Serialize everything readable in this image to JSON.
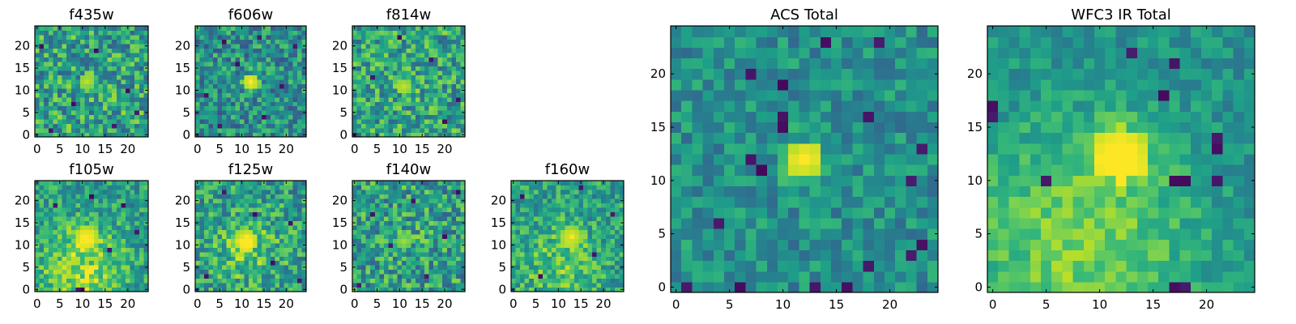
{
  "chart_data": [
    {
      "type": "heatmap",
      "title": "f435w",
      "xticks": [
        "0",
        "5",
        "10",
        "15",
        "20"
      ],
      "yticks": [
        "0",
        "5",
        "10",
        "15",
        "20"
      ],
      "xlim": [
        -0.5,
        24.5
      ],
      "ylim": [
        -0.5,
        24.5
      ],
      "peak_center": [
        11,
        12
      ],
      "peak_radius": 1.6,
      "peak_value": 0.9,
      "base": 0.58,
      "noise": 0.27,
      "seed": 11,
      "bright_blob": null,
      "dark_pixels": [
        [
          3,
          1
        ],
        [
          17,
          2
        ],
        [
          8,
          7
        ],
        [
          20,
          10
        ],
        [
          13,
          19
        ],
        [
          1,
          20
        ],
        [
          22,
          5
        ]
      ],
      "colormap": "viridis",
      "grid": false
    },
    {
      "type": "heatmap",
      "title": "f606w",
      "xticks": [
        "0",
        "5",
        "10",
        "15",
        "20"
      ],
      "yticks": [
        "0",
        "5",
        "10",
        "15",
        "20"
      ],
      "xlim": [
        -0.5,
        24.5
      ],
      "ylim": [
        -0.5,
        24.5
      ],
      "peak_center": [
        12,
        12
      ],
      "peak_radius": 1.8,
      "peak_value": 1.0,
      "base": 0.5,
      "noise": 0.24,
      "seed": 23,
      "bright_blob": null,
      "dark_pixels": [
        [
          5,
          2
        ],
        [
          15,
          4
        ],
        [
          2,
          9
        ],
        [
          19,
          11
        ],
        [
          9,
          16
        ],
        [
          22,
          20
        ],
        [
          14,
          22
        ],
        [
          6,
          21
        ]
      ],
      "colormap": "viridis",
      "grid": false
    },
    {
      "type": "heatmap",
      "title": "f814w",
      "xticks": [
        "0",
        "5",
        "10",
        "15",
        "20"
      ],
      "yticks": [
        "0",
        "5",
        "10",
        "15",
        "20"
      ],
      "xlim": [
        -0.5,
        24.5
      ],
      "ylim": [
        -0.5,
        24.5
      ],
      "peak_center": [
        11,
        11
      ],
      "peak_radius": 1.7,
      "peak_value": 0.92,
      "base": 0.58,
      "noise": 0.26,
      "seed": 37,
      "bright_blob": null,
      "dark_pixels": [
        [
          0,
          0
        ],
        [
          20,
          3
        ],
        [
          4,
          13
        ],
        [
          17,
          17
        ],
        [
          10,
          22
        ],
        [
          23,
          8
        ]
      ],
      "colormap": "viridis",
      "grid": false
    },
    {
      "type": "heatmap",
      "title": "f105w",
      "xticks": [
        "0",
        "5",
        "10",
        "15",
        "20"
      ],
      "yticks": [
        "0",
        "5",
        "10",
        "15",
        "20"
      ],
      "xlim": [
        -0.5,
        24.5
      ],
      "ylim": [
        -0.5,
        24.5
      ],
      "peak_center": [
        11,
        12
      ],
      "peak_radius": 2.4,
      "peak_value": 0.9,
      "base": 0.55,
      "noise": 0.2,
      "seed": 41,
      "bright_blob": [
        10,
        4,
        7,
        0.28
      ],
      "dark_pixels": [
        [
          9,
          0
        ],
        [
          10,
          0
        ],
        [
          16,
          9
        ],
        [
          22,
          13
        ],
        [
          4,
          19
        ],
        [
          19,
          19
        ],
        [
          12,
          21
        ]
      ],
      "colormap": "viridis",
      "grid": false
    },
    {
      "type": "heatmap",
      "title": "f125w",
      "xticks": [
        "0",
        "5",
        "10",
        "15",
        "20"
      ],
      "yticks": [
        "0",
        "5",
        "10",
        "15",
        "20"
      ],
      "xlim": [
        -0.5,
        24.5
      ],
      "ylim": [
        -0.5,
        24.5
      ],
      "peak_center": [
        11,
        11
      ],
      "peak_radius": 2.3,
      "peak_value": 0.9,
      "base": 0.56,
      "noise": 0.24,
      "seed": 53,
      "bright_blob": [
        11,
        9,
        5,
        0.18
      ],
      "dark_pixels": [
        [
          2,
          3
        ],
        [
          17,
          6
        ],
        [
          13,
          17
        ],
        [
          21,
          15
        ],
        [
          6,
          22
        ],
        [
          23,
          2
        ]
      ],
      "colormap": "viridis",
      "grid": false
    },
    {
      "type": "heatmap",
      "title": "f140w",
      "xticks": [
        "0",
        "5",
        "10",
        "15",
        "20"
      ],
      "yticks": [
        "0",
        "5",
        "10",
        "15",
        "20"
      ],
      "xlim": [
        -0.5,
        24.5
      ],
      "ylim": [
        -0.5,
        24.5
      ],
      "peak_center": [
        11,
        11
      ],
      "peak_radius": 2.0,
      "peak_value": 0.85,
      "base": 0.56,
      "noise": 0.26,
      "seed": 67,
      "bright_blob": null,
      "dark_pixels": [
        [
          1,
          1
        ],
        [
          16,
          3
        ],
        [
          8,
          10
        ],
        [
          20,
          12
        ],
        [
          4,
          17
        ],
        [
          13,
          20
        ],
        [
          23,
          22
        ]
      ],
      "colormap": "viridis",
      "grid": false
    },
    {
      "type": "heatmap",
      "title": "f160w",
      "xticks": [
        "0",
        "5",
        "10",
        "15",
        "20"
      ],
      "yticks": [
        "0",
        "5",
        "10",
        "15",
        "20"
      ],
      "xlim": [
        -0.5,
        24.5
      ],
      "ylim": [
        -0.5,
        24.5
      ],
      "peak_center": [
        13,
        12
      ],
      "peak_radius": 2.6,
      "peak_value": 0.9,
      "base": 0.56,
      "noise": 0.2,
      "seed": 79,
      "bright_blob": [
        10,
        5,
        6,
        0.18
      ],
      "dark_pixels": [
        [
          6,
          3
        ],
        [
          18,
          8
        ],
        [
          22,
          17
        ],
        [
          2,
          21
        ],
        [
          15,
          23
        ]
      ],
      "colormap": "viridis",
      "grid": false
    },
    {
      "type": "heatmap",
      "title": "ACS Total",
      "xticks": [
        "0",
        "5",
        "10",
        "15",
        "20"
      ],
      "yticks": [
        "0",
        "5",
        "10",
        "15",
        "20"
      ],
      "xlim": [
        -0.5,
        24.5
      ],
      "ylim": [
        -0.5,
        24.5
      ],
      "peak_center": [
        12,
        12
      ],
      "peak_radius": 1.8,
      "peak_value": 1.0,
      "base": 0.5,
      "noise": 0.16,
      "seed": 97,
      "bright_blob": null,
      "dark_pixels": [
        [
          1,
          0
        ],
        [
          6,
          0
        ],
        [
          13,
          0
        ],
        [
          16,
          0
        ],
        [
          18,
          2
        ],
        [
          22,
          3
        ],
        [
          23,
          4
        ],
        [
          8,
          11
        ],
        [
          7,
          12
        ],
        [
          10,
          15
        ],
        [
          10,
          16
        ],
        [
          18,
          16
        ],
        [
          10,
          19
        ],
        [
          7,
          20
        ],
        [
          22,
          10
        ],
        [
          19,
          23
        ],
        [
          14,
          23
        ],
        [
          4,
          6
        ],
        [
          23,
          13
        ]
      ],
      "colormap": "viridis",
      "grid": false
    },
    {
      "type": "heatmap",
      "title": "WFC3 IR Total",
      "xticks": [
        "0",
        "5",
        "10",
        "15",
        "20"
      ],
      "yticks": [
        "0",
        "5",
        "10",
        "15",
        "20"
      ],
      "xlim": [
        -0.5,
        24.5
      ],
      "ylim": [
        -0.5,
        24.5
      ],
      "peak_center": [
        12,
        12.5
      ],
      "peak_radius": 2.6,
      "peak_value": 0.95,
      "base": 0.5,
      "noise": 0.12,
      "seed": 113,
      "bright_blob": [
        8,
        4,
        8,
        0.3
      ],
      "dark_pixels": [
        [
          17,
          0
        ],
        [
          18,
          0
        ],
        [
          0,
          16
        ],
        [
          0,
          17
        ],
        [
          5,
          10
        ],
        [
          17,
          10
        ],
        [
          18,
          10
        ],
        [
          21,
          10
        ],
        [
          21,
          13
        ],
        [
          21,
          14
        ],
        [
          16,
          18
        ],
        [
          13,
          22
        ],
        [
          17,
          21
        ]
      ],
      "colormap": "viridis",
      "grid": false
    }
  ]
}
